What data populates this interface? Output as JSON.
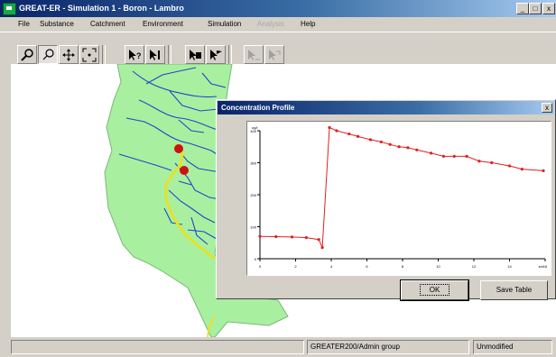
{
  "window": {
    "title": "GREAT-ER - Simulation 1 - Boron - Lambro",
    "controls": {
      "minimize": "_",
      "maximize": "□",
      "close": "x"
    }
  },
  "menu": [
    {
      "label": "File",
      "enabled": true
    },
    {
      "label": "Substance",
      "enabled": true
    },
    {
      "label": "Catchment",
      "enabled": true
    },
    {
      "label": "Environment",
      "enabled": true
    },
    {
      "label": "Simulation",
      "enabled": true
    },
    {
      "label": "Analysis",
      "enabled": false
    },
    {
      "label": "Help",
      "enabled": true
    }
  ],
  "toolbar": {
    "buttons": [
      {
        "icon": "zoom-in-icon"
      },
      {
        "icon": "zoom-out-icon"
      },
      {
        "icon": "pan-icon"
      },
      {
        "icon": "full-extent-icon"
      },
      {
        "icon": "query-info-icon"
      },
      {
        "icon": "identify-river-icon"
      },
      {
        "icon": "map-layers-icon"
      },
      {
        "icon": "flag-icon"
      },
      {
        "icon": "profile-chart-icon"
      },
      {
        "icon": "profile-export-icon"
      }
    ]
  },
  "map": {
    "colors": {
      "land": "#a8f0a0",
      "river": "#1e46c8",
      "selected_path": "#e8e02a",
      "marker": "#cc1111"
    }
  },
  "status": {
    "panel_group": "GREATER200/Admin group",
    "panel_state": "Unmodified"
  },
  "dialog": {
    "title": "Concentration Profile",
    "close_label": "x",
    "ok_label": "OK",
    "save_label": "Save Table"
  },
  "chart_data": {
    "type": "line",
    "xlabel": "km",
    "ylabel": "ug/l",
    "xlim": [
      0,
      16
    ],
    "ylim": [
      0,
      400
    ],
    "x_ticks": [
      0,
      2,
      4,
      6,
      8,
      10,
      12,
      14,
      16
    ],
    "y_ticks": [
      0,
      100,
      200,
      300,
      400
    ],
    "color": "#e02020",
    "x": [
      0,
      0.9,
      1.8,
      2.6,
      3.3,
      3.5,
      3.9,
      4.3,
      5.0,
      5.5,
      6.2,
      6.8,
      7.3,
      7.8,
      8.3,
      8.8,
      9.6,
      10.3,
      10.9,
      11.6,
      12.3,
      13.0,
      14.0,
      14.7,
      15.9
    ],
    "y": [
      70,
      69,
      68,
      66,
      60,
      35,
      410,
      400,
      390,
      382,
      372,
      365,
      357,
      350,
      347,
      340,
      330,
      320,
      320,
      320,
      305,
      300,
      290,
      280,
      275
    ]
  }
}
